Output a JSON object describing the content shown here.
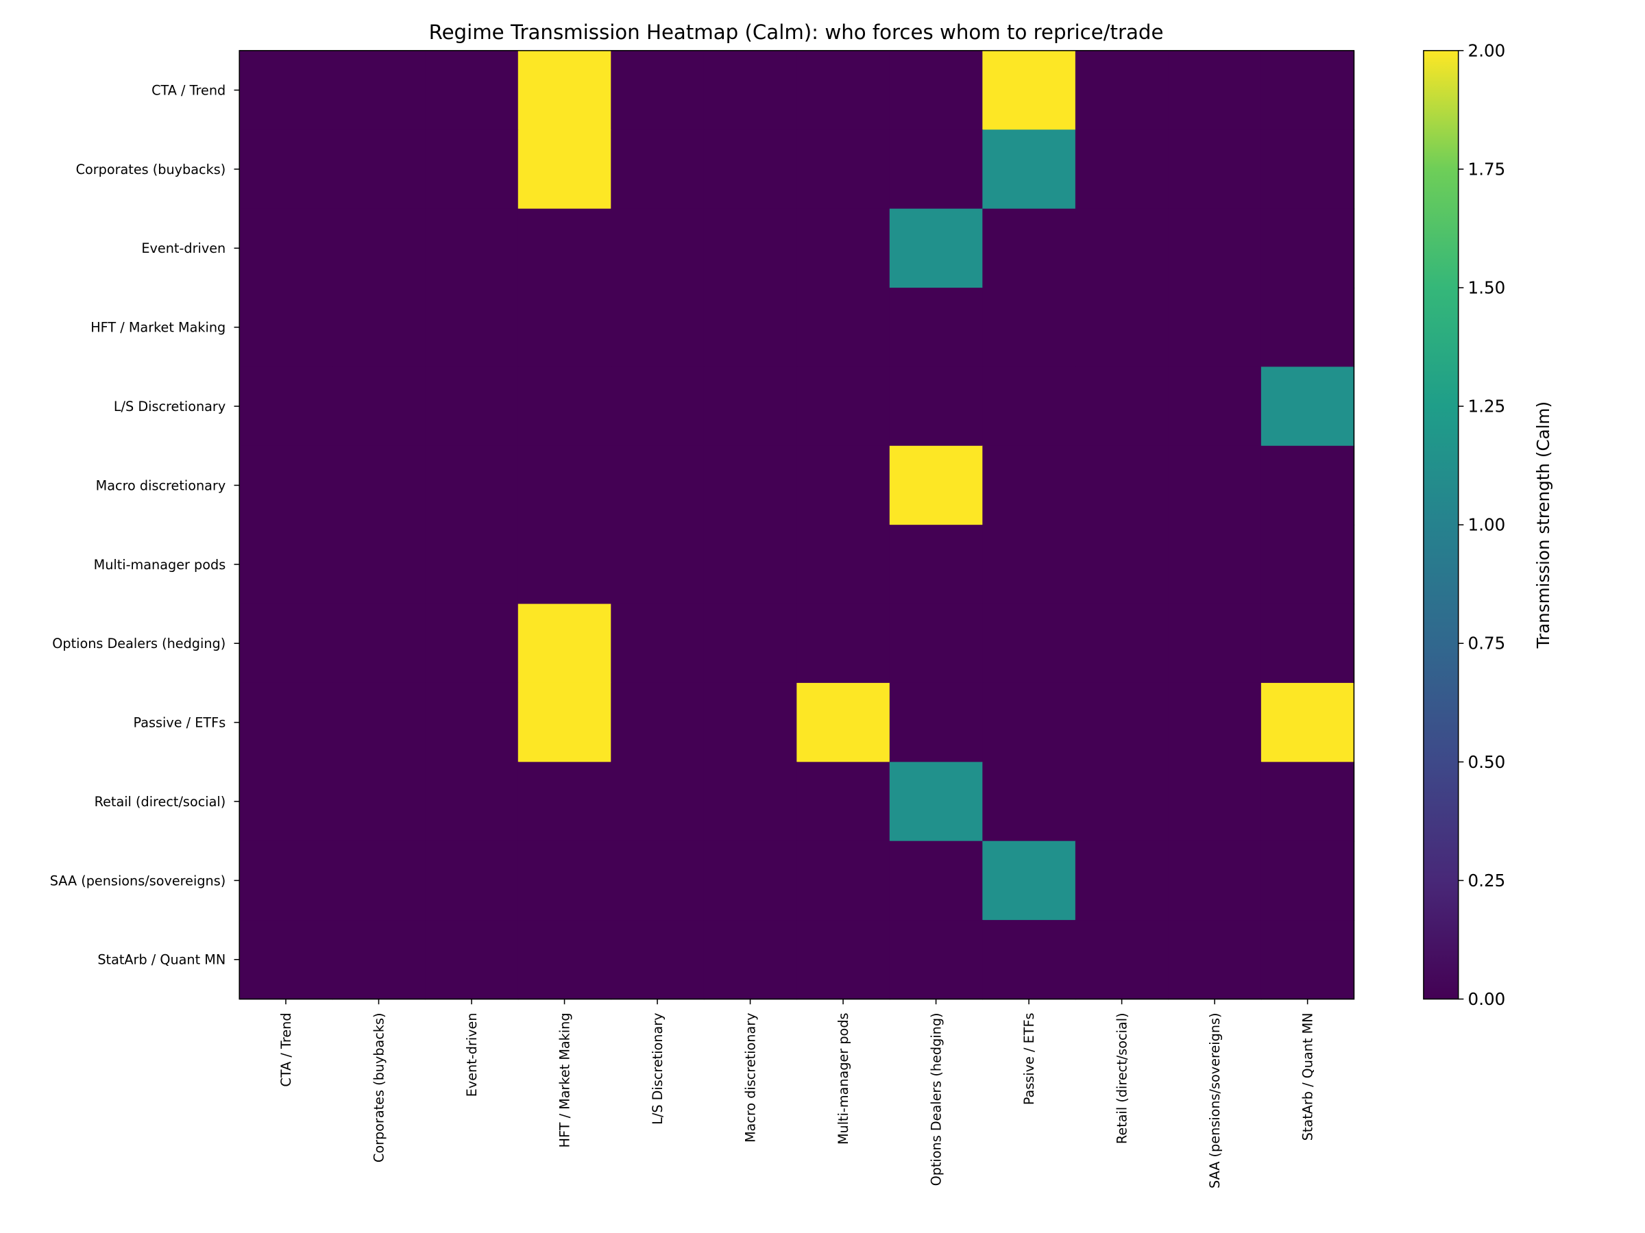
{
  "chart_data": {
    "type": "heatmap",
    "title": "Regime Transmission Heatmap (Calm): who forces whom to reprice/trade",
    "xlabel": "",
    "ylabel": "",
    "x_categories": [
      "CTA / Trend",
      "Corporates (buybacks)",
      "Event-driven",
      "HFT / Market Making",
      "L/S Discretionary",
      "Macro discretionary",
      "Multi-manager pods",
      "Options Dealers (hedging)",
      "Passive / ETFs",
      "Retail (direct/social)",
      "SAA (pensions/sovereigns)",
      "StatArb / Quant MN"
    ],
    "y_categories": [
      "CTA / Trend",
      "Corporates (buybacks)",
      "Event-driven",
      "HFT / Market Making",
      "L/S Discretionary",
      "Macro discretionary",
      "Multi-manager pods",
      "Options Dealers (hedging)",
      "Passive / ETFs",
      "Retail (direct/social)",
      "SAA (pensions/sovereigns)",
      "StatArb / Quant MN"
    ],
    "values": [
      [
        0,
        0,
        0,
        2,
        0,
        0,
        0,
        0,
        2,
        0,
        0,
        0
      ],
      [
        0,
        0,
        0,
        2,
        0,
        0,
        0,
        0,
        1,
        0,
        0,
        0
      ],
      [
        0,
        0,
        0,
        0,
        0,
        0,
        0,
        1,
        0,
        0,
        0,
        0
      ],
      [
        0,
        0,
        0,
        0,
        0,
        0,
        0,
        0,
        0,
        0,
        0,
        0
      ],
      [
        0,
        0,
        0,
        0,
        0,
        0,
        0,
        0,
        0,
        0,
        0,
        1
      ],
      [
        0,
        0,
        0,
        0,
        0,
        0,
        0,
        2,
        0,
        0,
        0,
        0
      ],
      [
        0,
        0,
        0,
        0,
        0,
        0,
        0,
        0,
        0,
        0,
        0,
        0
      ],
      [
        0,
        0,
        0,
        2,
        0,
        0,
        0,
        0,
        0,
        0,
        0,
        0
      ],
      [
        0,
        0,
        0,
        2,
        0,
        0,
        2,
        0,
        0,
        0,
        0,
        2
      ],
      [
        0,
        0,
        0,
        0,
        0,
        0,
        0,
        1,
        0,
        0,
        0,
        0
      ],
      [
        0,
        0,
        0,
        0,
        0,
        0,
        0,
        0,
        1,
        0,
        0,
        0
      ],
      [
        0,
        0,
        0,
        0,
        0,
        0,
        0,
        0,
        0,
        0,
        0,
        0
      ]
    ],
    "colormap": "viridis",
    "colors": {
      "0": "#440154",
      "1": "#21918c",
      "2": "#fde725"
    },
    "vmin": 0,
    "vmax": 2,
    "colorbar": {
      "label": "Transmission strength (Calm)",
      "ticks": [
        "0.00",
        "0.25",
        "0.50",
        "0.75",
        "1.00",
        "1.25",
        "1.50",
        "1.75",
        "2.00"
      ]
    },
    "grid": false,
    "legend": "none"
  }
}
